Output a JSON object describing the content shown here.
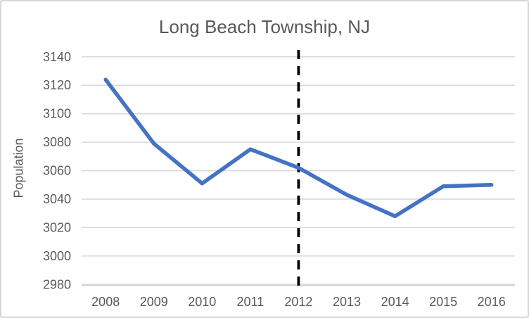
{
  "chart_data": {
    "type": "line",
    "title": "Long Beach Township, NJ",
    "ylabel": "Population",
    "xlabel": "",
    "categories": [
      "2008",
      "2009",
      "2010",
      "2011",
      "2012",
      "2013",
      "2014",
      "2015",
      "2016"
    ],
    "series": [
      {
        "name": "Population",
        "color": "#4472C4",
        "values": [
          3124,
          3079,
          3051,
          3075,
          3062,
          3043,
          3028,
          3049,
          3050
        ]
      }
    ],
    "ylim": [
      2980,
      3140
    ],
    "yticks": [
      2980,
      3000,
      3020,
      3040,
      3060,
      3080,
      3100,
      3120,
      3140
    ],
    "grid": true,
    "legend_position": "none",
    "annotation": {
      "type": "vertical_dashed_line",
      "at_category": "2012",
      "color": "#000000"
    },
    "colors": {
      "line": "#4472C4",
      "gridline": "#d9d9d9",
      "axis_line": "#c9c9c9",
      "axis_text": "#595959",
      "title_text": "#595959",
      "frame_border": "#d6d6d6",
      "background": "#ffffff"
    }
  }
}
